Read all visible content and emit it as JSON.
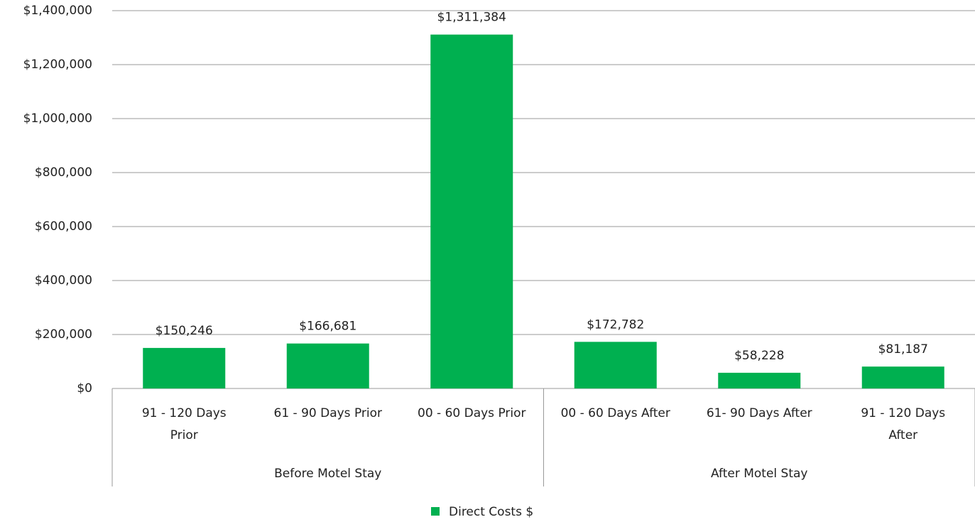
{
  "chart_data": {
    "type": "bar",
    "categories": [
      "91 - 120 Days\nPrior",
      "61 - 90 Days Prior",
      "00 - 60 Days Prior",
      "00 - 60 Days After",
      "61- 90 Days After",
      "91 - 120 Days\nAfter"
    ],
    "groups": [
      {
        "label": "Before Motel Stay",
        "count": 3
      },
      {
        "label": "After Motel Stay",
        "count": 3
      }
    ],
    "series": [
      {
        "name": "Direct Costs $",
        "color": "#00b050",
        "values": [
          150246,
          166681,
          1311384,
          172782,
          58228,
          81187
        ],
        "value_labels": [
          "$150,246",
          "$166,681",
          "$1,311,384",
          "$172,782",
          "$58,228",
          "$81,187"
        ]
      }
    ],
    "ylim": [
      0,
      1400000
    ],
    "yticks": [
      {
        "value": 0,
        "label": "$0"
      },
      {
        "value": 200000,
        "label": "$200,000"
      },
      {
        "value": 400000,
        "label": "$400,000"
      },
      {
        "value": 600000,
        "label": "$600,000"
      },
      {
        "value": 800000,
        "label": "$800,000"
      },
      {
        "value": 1000000,
        "label": "$1,000,000"
      },
      {
        "value": 1200000,
        "label": "$1,200,000"
      },
      {
        "value": 1400000,
        "label": "$1,400,000"
      }
    ],
    "grid": true,
    "legend": "bottom"
  }
}
